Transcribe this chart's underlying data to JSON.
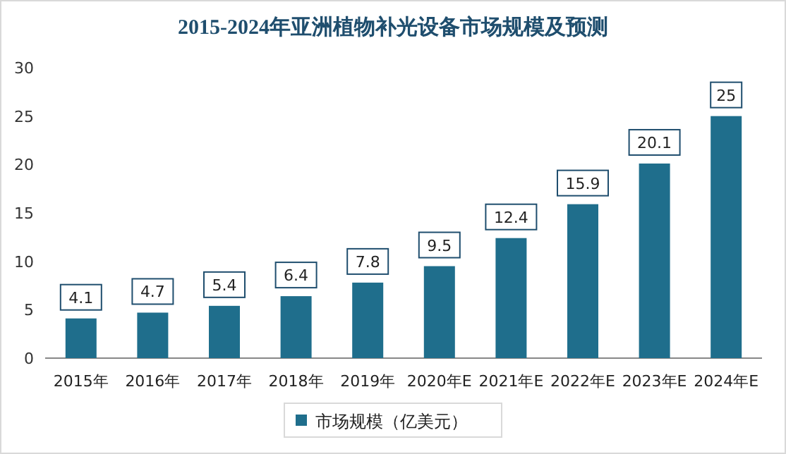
{
  "chart_data": {
    "type": "bar",
    "title": "2015-2024年亚洲植物补光设备市场规模及预测",
    "categories": [
      "2015年",
      "2016年",
      "2017年",
      "2018年",
      "2019年",
      "2020年E",
      "2021年E",
      "2022年E",
      "2023年E",
      "2024年E"
    ],
    "series": [
      {
        "name": "市场规模（亿美元）",
        "color": "#1f6e8c",
        "values": [
          4.1,
          4.7,
          5.4,
          6.4,
          7.8,
          9.5,
          12.4,
          15.9,
          20.1,
          25
        ]
      }
    ],
    "ylim": [
      0,
      30
    ],
    "yticks": [
      0,
      5,
      10,
      15,
      20,
      25,
      30
    ],
    "data_labels": true,
    "legend": "bottom"
  }
}
